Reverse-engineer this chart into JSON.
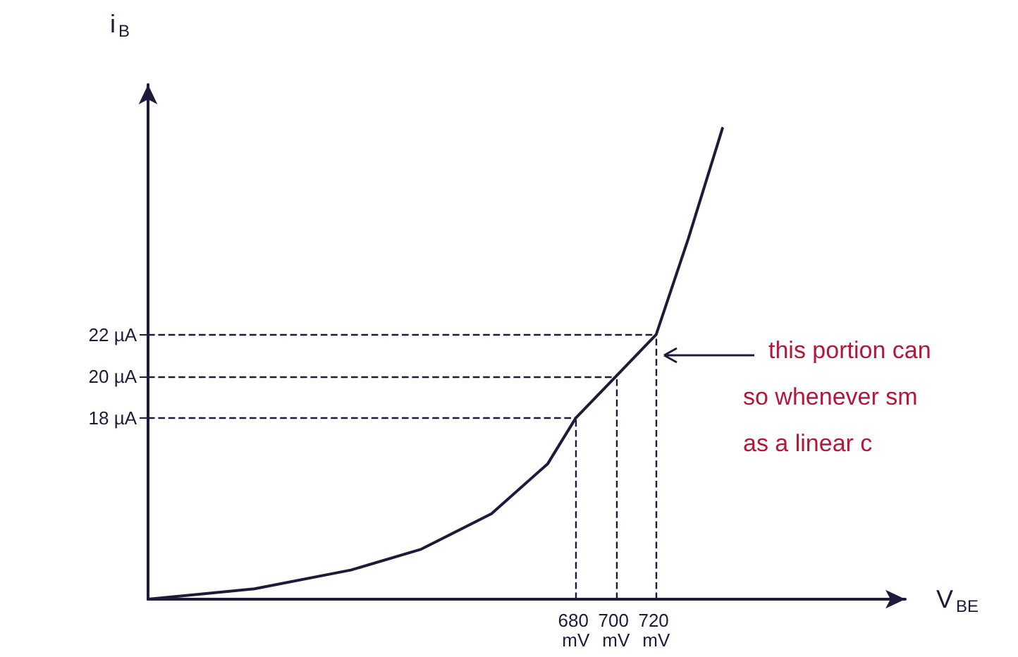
{
  "chart_data": {
    "type": "line",
    "xlabel": "V$_{BE}$",
    "ylabel": "i$_{B}$",
    "x": [
      467,
      520,
      568,
      603,
      638,
      666,
      680,
      700,
      720,
      736,
      753
    ],
    "series": [
      {
        "color": "#1c1c3a",
        "values": [
          9.3,
          9.8,
          10.7,
          11.7,
          13.4,
          15.8,
          18,
          20,
          22,
          26.6,
          31.9
        ]
      }
    ],
    "xlim": [
      467,
      844
    ],
    "ylim": [
      9.3,
      34
    ],
    "xticks": [
      {
        "value": 680,
        "label": "680 mV"
      },
      {
        "value": 700,
        "label": "700 mV"
      },
      {
        "value": 720,
        "label": "720 mV"
      }
    ],
    "yticks": [
      {
        "value": 18,
        "label": "18 µA"
      },
      {
        "value": 20,
        "label": "20 µA"
      },
      {
        "value": 22,
        "label": "22 µA"
      }
    ],
    "ref_lines": [
      {
        "axis": "y",
        "value": 18,
        "line_style": "dashed"
      },
      {
        "axis": "y",
        "value": 20,
        "line_style": "dashed"
      },
      {
        "axis": "y",
        "value": 22,
        "line_style": "dashed"
      },
      {
        "axis": "x",
        "value": 680,
        "line_style": "dashed"
      },
      {
        "axis": "x",
        "value": 700,
        "line_style": "dashed"
      },
      {
        "axis": "x",
        "value": 720,
        "line_style": "dashed"
      }
    ],
    "annotations": [
      "this portion can",
      "so whenever sm",
      "as a linear c"
    ],
    "grid": false,
    "marker": "none",
    "line_style": "solid"
  }
}
